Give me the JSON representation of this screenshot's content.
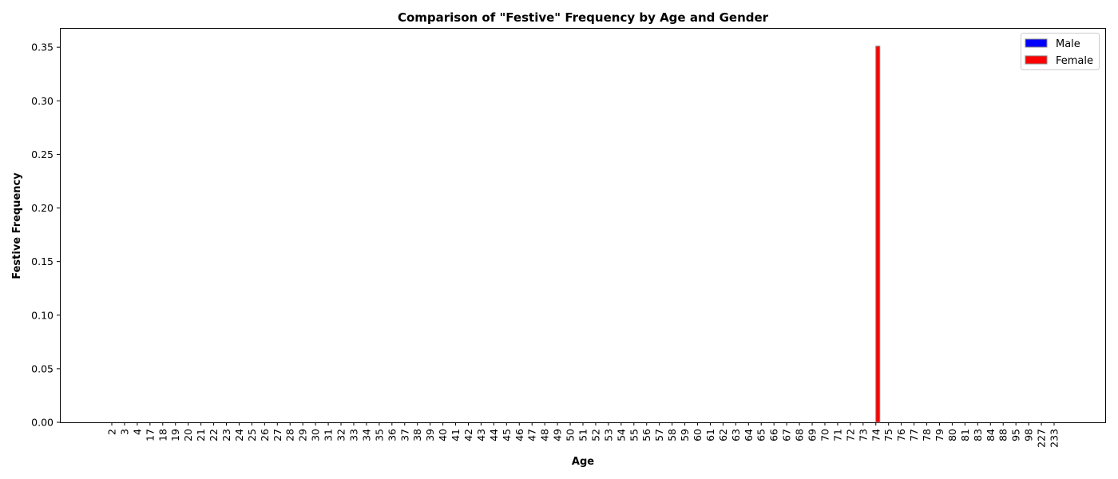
{
  "chart_data": {
    "type": "bar",
    "title": "Comparison of \"Festive\" Frequency by Age and Gender",
    "xlabel": "Age",
    "ylabel": "Festive Frequency",
    "ylim": [
      0,
      0.368
    ],
    "yticks": [
      "0.00",
      "0.05",
      "0.10",
      "0.15",
      "0.20",
      "0.25",
      "0.30",
      "0.35"
    ],
    "categories": [
      "2",
      "3",
      "4",
      "17",
      "18",
      "19",
      "20",
      "21",
      "22",
      "23",
      "24",
      "25",
      "26",
      "27",
      "28",
      "29",
      "30",
      "31",
      "32",
      "33",
      "34",
      "35",
      "36",
      "37",
      "38",
      "39",
      "40",
      "41",
      "42",
      "43",
      "44",
      "45",
      "46",
      "47",
      "48",
      "49",
      "50",
      "51",
      "52",
      "53",
      "54",
      "55",
      "56",
      "57",
      "58",
      "59",
      "60",
      "61",
      "62",
      "63",
      "64",
      "65",
      "66",
      "67",
      "68",
      "69",
      "70",
      "71",
      "72",
      "73",
      "74",
      "75",
      "76",
      "77",
      "78",
      "79",
      "80",
      "81",
      "83",
      "84",
      "88",
      "95",
      "98",
      "227",
      "233"
    ],
    "series": [
      {
        "name": "Male",
        "color": "#0000ff",
        "values": [
          0,
          0,
          0,
          0,
          0,
          0,
          0,
          0,
          0,
          0,
          0,
          0,
          0,
          0,
          0,
          0,
          0,
          0,
          0,
          0,
          0,
          0,
          0,
          0,
          0,
          0,
          0,
          0,
          0,
          0,
          0,
          0,
          0,
          0,
          0,
          0,
          0,
          0,
          0,
          0,
          0,
          0,
          0,
          0,
          0,
          0,
          0,
          0,
          0,
          0,
          0,
          0,
          0,
          0,
          0,
          0,
          0,
          0,
          0,
          0,
          0,
          0,
          0,
          0,
          0,
          0,
          0,
          0,
          0,
          0,
          0,
          0,
          0,
          0,
          0
        ]
      },
      {
        "name": "Female",
        "color": "#ff0000",
        "values": [
          0,
          0,
          0,
          0,
          0,
          0,
          0,
          0,
          0,
          0,
          0,
          0,
          0,
          0,
          0,
          0,
          0,
          0,
          0,
          0,
          0,
          0,
          0,
          0,
          0,
          0,
          0,
          0,
          0,
          0,
          0,
          0,
          0,
          0,
          0,
          0,
          0,
          0,
          0,
          0,
          0,
          0,
          0,
          0,
          0,
          0,
          0,
          0,
          0,
          0,
          0,
          0,
          0,
          0,
          0,
          0,
          0,
          0,
          0,
          0,
          0.351,
          0,
          0,
          0,
          0,
          0,
          0,
          0,
          0,
          0,
          0,
          0,
          0,
          0,
          0
        ]
      }
    ],
    "grid": false,
    "legend_position": "top-right"
  }
}
